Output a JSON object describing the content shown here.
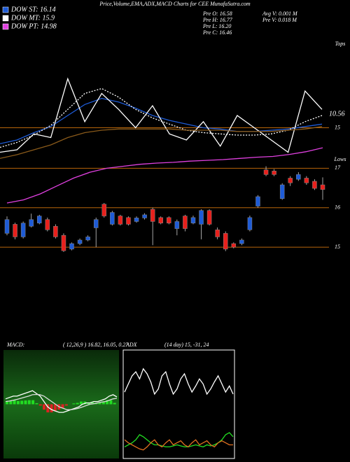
{
  "chart_data": [
    {
      "type": "candlestick",
      "title": "Price,Volume,EMA,ADX,MACD Charts for CEE MunafaSutra.com",
      "legend": [
        {
          "label": "DOW ST: 16.14",
          "color": "#1e5bd6"
        },
        {
          "label": "DOW MT: 15.9",
          "color": "#ffffff"
        },
        {
          "label": "DOW PT: 14.98",
          "color": "#e040e0"
        }
      ],
      "info": [
        "Pre  O: 16.58",
        "Pre  H: 16.77",
        "Pre  L: 16.20",
        "Pre  C: 16.46",
        "Avg V: 0.001 M",
        "Pre  V: 0.018 M"
      ],
      "annotations": [
        "Tops",
        "Lows"
      ],
      "open": [
        15.35,
        15.58,
        15.26,
        15.53,
        15.61,
        15.7,
        15.53,
        15.3,
        14.95,
        15.09,
        15.18,
        15.49,
        16.09,
        15.58,
        15.79,
        15.75,
        15.65,
        15.74,
        15.96,
        15.75,
        15.75,
        15.47,
        15.79,
        15.61,
        15.58,
        15.93,
        15.44,
        15.35,
        15.09,
        15.09,
        15.44,
        16.04,
        16.96,
        16.93,
        16.23,
        16.75,
        16.72,
        16.75,
        16.67,
        16.58
      ],
      "high": [
        15.78,
        15.62,
        15.65,
        15.85,
        15.82,
        15.75,
        15.58,
        15.35,
        15.12,
        15.22,
        15.3,
        15.75,
        16.12,
        15.92,
        15.82,
        15.78,
        15.78,
        15.86,
        16.0,
        15.78,
        15.78,
        15.7,
        15.82,
        15.8,
        15.96,
        15.96,
        15.5,
        15.4,
        15.12,
        15.22,
        15.8,
        16.32,
        17.05,
        16.98,
        16.62,
        16.8,
        16.9,
        16.8,
        16.72,
        16.77
      ],
      "low": [
        15.3,
        15.2,
        15.22,
        15.5,
        15.58,
        15.4,
        15.22,
        14.88,
        14.92,
        15.05,
        15.15,
        15.0,
        15.75,
        15.55,
        15.55,
        15.55,
        15.62,
        15.7,
        15.05,
        15.58,
        15.58,
        15.3,
        15.4,
        15.58,
        15.2,
        15.55,
        15.2,
        14.9,
        14.97,
        15.05,
        15.4,
        16.0,
        16.8,
        16.8,
        16.2,
        16.55,
        16.68,
        16.58,
        16.45,
        16.2
      ],
      "close": [
        15.7,
        15.26,
        15.61,
        15.7,
        15.79,
        15.44,
        15.26,
        14.91,
        15.09,
        15.18,
        15.26,
        15.7,
        15.79,
        15.88,
        15.58,
        15.58,
        15.74,
        15.82,
        15.65,
        15.61,
        15.61,
        15.65,
        15.47,
        15.75,
        15.93,
        15.58,
        15.26,
        14.95,
        15.0,
        15.18,
        15.75,
        16.28,
        16.84,
        16.84,
        16.58,
        16.63,
        16.84,
        16.63,
        16.49,
        16.46
      ],
      "up_color": "#1e5bd6",
      "down_color": "#e8201c",
      "series": [
        {
          "color": "#e040e0",
          "values": [
            16.12,
            16.2,
            16.35,
            16.55,
            16.75,
            16.9,
            17.0,
            17.05,
            17.1,
            17.13,
            17.15,
            17.18,
            17.2,
            17.22,
            17.25,
            17.28,
            17.3,
            17.35,
            17.42,
            17.52
          ]
        }
      ],
      "ylim": [
        14.7,
        20.2
      ],
      "yticks": [
        15,
        16,
        17
      ],
      "tick_color": "#b8650a"
    },
    {
      "type": "line",
      "annotations": [
        "10.56"
      ],
      "series": [
        {
          "color": "#1e5bd6",
          "values": [
            13.7,
            14,
            14.6,
            15.1,
            16,
            16.9,
            17.4,
            17.1,
            16.6,
            16,
            15.6,
            15.3,
            15,
            14.9,
            14.7,
            14.7,
            14.8,
            14.9,
            15.1,
            15.3
          ]
        },
        {
          "color": "#ffffff",
          "dash": true,
          "values": [
            13.4,
            13.8,
            14.4,
            15.2,
            16.5,
            17.8,
            18.2,
            17.5,
            16.5,
            15.8,
            15.3,
            14.8,
            14.6,
            14.5,
            14.4,
            14.4,
            14.5,
            14.8,
            15.5,
            16
          ]
        },
        {
          "color": "#ffffff",
          "values": [
            13,
            13.2,
            14.5,
            14.2,
            19,
            15.5,
            17.8,
            16.5,
            15,
            16.8,
            14.5,
            14,
            15.5,
            13.5,
            16,
            15,
            14,
            13,
            18,
            16.5
          ]
        },
        {
          "color": "#8a5a1a",
          "values": [
            12.5,
            12.8,
            13.2,
            13.6,
            14.2,
            14.6,
            14.8,
            14.9,
            14.9,
            14.9,
            14.9,
            14.8,
            14.8,
            14.8,
            14.7,
            14.7,
            14.7,
            14.8,
            14.9,
            15.1
          ]
        }
      ],
      "ylim": [
        12,
        22
      ],
      "yticks": [
        15
      ],
      "tick_color": "#b8650a"
    },
    {
      "type": "macd",
      "title": "MACD:",
      "subtitle": "( 12,26,9 ) 16.82, 16.05, 0.27",
      "series": [
        {
          "color": "#ffffff",
          "values": [
            0.2,
            0.25,
            0.3,
            0.3,
            0.35,
            0.4,
            0.45,
            0.5,
            0.4,
            0.3,
            0.1,
            -0.1,
            -0.2,
            -0.25,
            -0.3,
            -0.3,
            -0.25,
            -0.2,
            -0.15,
            -0.1,
            0,
            0.05,
            0.05,
            0.1,
            0.1,
            0.15,
            0.2,
            0.3,
            0.35,
            0.27
          ]
        },
        {
          "color": "#dddddd",
          "values": [
            0.1,
            0.12,
            0.15,
            0.18,
            0.22,
            0.26,
            0.3,
            0.35,
            0.36,
            0.35,
            0.3,
            0.2,
            0.1,
            0,
            -0.1,
            -0.15,
            -0.2,
            -0.2,
            -0.18,
            -0.15,
            -0.1,
            -0.05,
            0,
            0.02,
            0.05,
            0.08,
            0.1,
            0.15,
            0.2,
            0.22
          ]
        }
      ],
      "histogram": [
        0.1,
        0.13,
        0.15,
        0.12,
        0.13,
        0.14,
        0.15,
        0.15,
        0.04,
        -0.05,
        -0.2,
        -0.3,
        -0.3,
        -0.25,
        -0.2,
        -0.15,
        -0.05,
        0,
        0.03,
        0.05,
        0.1,
        0.1,
        0.05,
        0.08,
        0.05,
        0.07,
        0.1,
        0.15,
        0.15,
        0.05
      ],
      "pos_color": "#22dd22",
      "neg_color": "#dd2222",
      "ylim": [
        -2,
        2
      ]
    },
    {
      "type": "adx",
      "title": "ADX",
      "subtitle": "(14 day) 15, -31, 24",
      "series": [
        {
          "color": "#ffffff",
          "values": [
            62,
            70,
            78,
            82,
            75,
            85,
            80,
            72,
            60,
            65,
            78,
            82,
            70,
            60,
            65,
            75,
            80,
            70,
            62,
            68,
            75,
            70,
            60,
            65,
            72,
            78,
            70,
            62,
            68,
            60
          ]
        },
        {
          "color": "#22dd22",
          "values": [
            8,
            10,
            12,
            15,
            20,
            18,
            15,
            12,
            10,
            10,
            9,
            8,
            8,
            9,
            10,
            9,
            8,
            8,
            9,
            10,
            9,
            8,
            10,
            9,
            10,
            12,
            15,
            20,
            22,
            18
          ]
        },
        {
          "color": "#e07020",
          "values": [
            15,
            12,
            10,
            8,
            6,
            5,
            8,
            12,
            15,
            10,
            8,
            12,
            15,
            10,
            12,
            14,
            10,
            8,
            12,
            15,
            10,
            12,
            14,
            10,
            8,
            12,
            14,
            12,
            10,
            10
          ]
        }
      ],
      "ylim": [
        0,
        100
      ]
    }
  ]
}
